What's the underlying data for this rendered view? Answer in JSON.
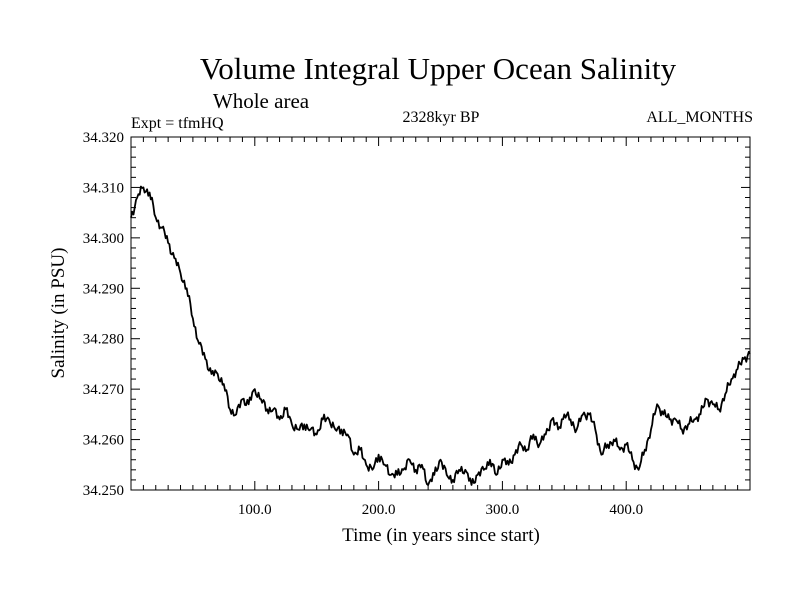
{
  "chart_data": {
    "type": "line",
    "title": "Volume Integral Upper Ocean Salinity",
    "subtitle": "Whole area",
    "experiment": "Expt = tfmHQ",
    "period": "2328kyr BP",
    "months": "ALL_MONTHS",
    "xlabel": "Time (in years since start)",
    "ylabel": "Salinity (in PSU)",
    "xlim": [
      0,
      500
    ],
    "ylim": [
      34.25,
      34.32
    ],
    "xticks": [
      100,
      200,
      300,
      400
    ],
    "xtick_labels": [
      "100.0",
      "200.0",
      "300.0",
      "400.0"
    ],
    "yticks": [
      34.25,
      34.26,
      34.27,
      34.28,
      34.29,
      34.3,
      34.31,
      34.32
    ],
    "ytick_labels": [
      "34.250",
      "34.260",
      "34.270",
      "34.280",
      "34.290",
      "34.300",
      "34.310",
      "34.320"
    ],
    "grid": false,
    "series": [
      {
        "name": "salinity",
        "color": "#000000",
        "x": [
          0,
          5,
          10,
          15,
          20,
          25,
          30,
          35,
          40,
          45,
          50,
          55,
          60,
          65,
          70,
          75,
          80,
          85,
          90,
          95,
          100,
          105,
          110,
          115,
          120,
          125,
          130,
          135,
          140,
          145,
          150,
          155,
          160,
          165,
          170,
          175,
          180,
          185,
          190,
          195,
          200,
          205,
          210,
          215,
          220,
          225,
          230,
          235,
          240,
          245,
          250,
          255,
          260,
          265,
          270,
          275,
          280,
          285,
          290,
          295,
          300,
          305,
          310,
          315,
          320,
          325,
          330,
          335,
          340,
          345,
          350,
          355,
          360,
          365,
          370,
          375,
          380,
          385,
          390,
          395,
          400,
          405,
          410,
          415,
          420,
          425,
          430,
          435,
          440,
          445,
          450,
          455,
          460,
          465,
          470,
          475,
          480,
          485,
          490,
          495,
          500
        ],
        "y": [
          34.304,
          34.308,
          34.31,
          34.309,
          34.304,
          34.302,
          34.299,
          34.296,
          34.293,
          34.29,
          34.284,
          34.279,
          34.276,
          34.273,
          34.273,
          34.271,
          34.266,
          34.265,
          34.268,
          34.267,
          34.27,
          34.268,
          34.266,
          34.266,
          34.264,
          34.266,
          34.263,
          34.262,
          34.263,
          34.262,
          34.261,
          34.264,
          34.264,
          34.262,
          34.262,
          34.261,
          34.257,
          34.258,
          34.255,
          34.254,
          34.257,
          34.255,
          34.253,
          34.253,
          34.254,
          34.256,
          34.254,
          34.255,
          34.251,
          34.253,
          34.256,
          34.253,
          34.252,
          34.254,
          34.254,
          34.251,
          34.253,
          34.254,
          34.256,
          34.253,
          34.256,
          34.255,
          34.257,
          34.259,
          34.258,
          34.261,
          34.259,
          34.261,
          34.264,
          34.262,
          34.265,
          34.264,
          34.262,
          34.265,
          34.265,
          34.262,
          34.257,
          34.259,
          34.26,
          34.258,
          34.259,
          34.256,
          34.254,
          34.258,
          34.262,
          34.267,
          34.265,
          34.264,
          34.264,
          34.262,
          34.263,
          34.264,
          34.265,
          34.268,
          34.267,
          34.266,
          34.269,
          34.272,
          34.274,
          34.276,
          34.277
        ]
      }
    ]
  }
}
